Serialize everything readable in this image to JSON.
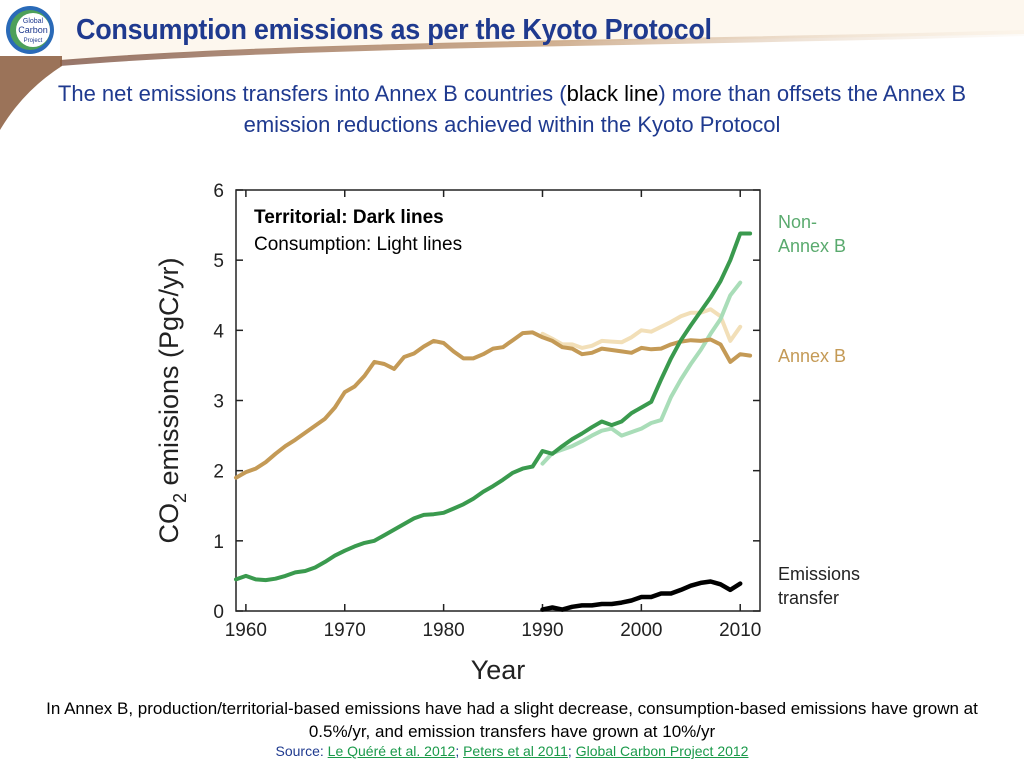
{
  "slide": {
    "title": "Consumption emissions as per the Kyoto Protocol",
    "subtitle_part1": "The net emissions transfers into Annex B countries (",
    "subtitle_black": "black line",
    "subtitle_part2": ") more than offsets the Annex B emission reductions achieved within the Kyoto Protocol",
    "logo_text": [
      "Global",
      "Carbon",
      "Project"
    ],
    "bottom_text": "In Annex B, production/territorial-based emissions have had a slight decrease, consumption-based emissions have grown at 0.5%/yr, and emission transfers have grown at 10%/yr",
    "source_label": "Source: ",
    "sources": [
      "Le Quéré et al. 2012",
      "Peters et al 2011",
      "Global Carbon Project 2012"
    ],
    "source_sep": "; ",
    "colors": {
      "title": "#1f3a8f",
      "link": "#1a9a4a"
    }
  },
  "chart_data": {
    "type": "line",
    "title": "",
    "xlabel": "Year",
    "ylabel_prefix": "CO",
    "ylabel_sub": "2",
    "ylabel_suffix": " emissions (PgC/yr)",
    "xlim": [
      1959,
      2012
    ],
    "ylim": [
      0,
      6
    ],
    "xticks": [
      1960,
      1970,
      1980,
      1990,
      2000,
      2010
    ],
    "yticks": [
      0,
      1,
      2,
      3,
      4,
      5,
      6
    ],
    "legend_note_bold": "Territorial: Dark lines",
    "legend_note": "Consumption: Light lines",
    "series": [
      {
        "name": "Annex B",
        "label_lines": [
          "Annex B"
        ],
        "label_color": "#c49a56",
        "kind": "territorial",
        "color": "#c49a56",
        "x": [
          1959,
          1960,
          1961,
          1962,
          1963,
          1964,
          1965,
          1966,
          1967,
          1968,
          1969,
          1970,
          1971,
          1972,
          1973,
          1974,
          1975,
          1976,
          1977,
          1978,
          1979,
          1980,
          1981,
          1982,
          1983,
          1984,
          1985,
          1986,
          1987,
          1988,
          1989,
          1990,
          1991,
          1992,
          1993,
          1994,
          1995,
          1996,
          1997,
          1998,
          1999,
          2000,
          2001,
          2002,
          2003,
          2004,
          2005,
          2006,
          2007,
          2008,
          2009,
          2010,
          2011
        ],
        "values": [
          1.9,
          1.98,
          2.03,
          2.12,
          2.24,
          2.35,
          2.44,
          2.54,
          2.64,
          2.74,
          2.9,
          3.12,
          3.2,
          3.35,
          3.55,
          3.52,
          3.45,
          3.62,
          3.67,
          3.77,
          3.85,
          3.82,
          3.7,
          3.6,
          3.6,
          3.66,
          3.74,
          3.76,
          3.86,
          3.96,
          3.97,
          3.9,
          3.85,
          3.76,
          3.74,
          3.66,
          3.68,
          3.74,
          3.72,
          3.7,
          3.68,
          3.75,
          3.73,
          3.74,
          3.8,
          3.84,
          3.86,
          3.85,
          3.87,
          3.8,
          3.55,
          3.66,
          3.64
        ]
      },
      {
        "name": "Annex B consumption",
        "kind": "consumption",
        "color": "#f2dfb8",
        "x": [
          1990,
          1991,
          1992,
          1993,
          1994,
          1995,
          1996,
          1997,
          1998,
          1999,
          2000,
          2001,
          2002,
          2003,
          2004,
          2005,
          2006,
          2007,
          2008,
          2009,
          2010
        ],
        "values": [
          3.95,
          3.88,
          3.8,
          3.8,
          3.75,
          3.78,
          3.85,
          3.84,
          3.83,
          3.9,
          4.0,
          3.98,
          4.05,
          4.12,
          4.2,
          4.25,
          4.25,
          4.3,
          4.2,
          3.85,
          4.05
        ]
      },
      {
        "name": "Non-Annex B",
        "label_lines": [
          "Non-",
          "Annex B"
        ],
        "label_color": "#5aaa6e",
        "kind": "territorial",
        "color": "#3a9a4e",
        "x": [
          1959,
          1960,
          1961,
          1962,
          1963,
          1964,
          1965,
          1966,
          1967,
          1968,
          1969,
          1970,
          1971,
          1972,
          1973,
          1974,
          1975,
          1976,
          1977,
          1978,
          1979,
          1980,
          1981,
          1982,
          1983,
          1984,
          1985,
          1986,
          1987,
          1988,
          1989,
          1990,
          1991,
          1992,
          1993,
          1994,
          1995,
          1996,
          1997,
          1998,
          1999,
          2000,
          2001,
          2002,
          2003,
          2004,
          2005,
          2006,
          2007,
          2008,
          2009,
          2010,
          2011
        ],
        "values": [
          0.45,
          0.5,
          0.45,
          0.44,
          0.46,
          0.5,
          0.55,
          0.57,
          0.62,
          0.7,
          0.79,
          0.86,
          0.92,
          0.97,
          1.0,
          1.08,
          1.16,
          1.24,
          1.32,
          1.37,
          1.38,
          1.4,
          1.46,
          1.52,
          1.6,
          1.7,
          1.78,
          1.87,
          1.97,
          2.03,
          2.06,
          2.28,
          2.24,
          2.35,
          2.45,
          2.53,
          2.62,
          2.7,
          2.65,
          2.7,
          2.82,
          2.9,
          2.98,
          3.3,
          3.6,
          3.86,
          4.07,
          4.27,
          4.47,
          4.7,
          5.0,
          5.38,
          5.38
        ]
      },
      {
        "name": "Non-Annex B consumption",
        "kind": "consumption",
        "color": "#a9ddb8",
        "x": [
          1990,
          1991,
          1992,
          1993,
          1994,
          1995,
          1996,
          1997,
          1998,
          1999,
          2000,
          2001,
          2002,
          2003,
          2004,
          2005,
          2006,
          2007,
          2008,
          2009,
          2010
        ],
        "values": [
          2.1,
          2.25,
          2.3,
          2.35,
          2.42,
          2.5,
          2.57,
          2.6,
          2.5,
          2.55,
          2.6,
          2.68,
          2.72,
          3.05,
          3.3,
          3.52,
          3.72,
          3.95,
          4.16,
          4.5,
          4.68
        ]
      },
      {
        "name": "Emissions transfer",
        "label_lines": [
          "Emissions",
          "transfer"
        ],
        "label_color": "#222222",
        "kind": "transfer",
        "color": "#000000",
        "x": [
          1990,
          1991,
          1992,
          1993,
          1994,
          1995,
          1996,
          1997,
          1998,
          1999,
          2000,
          2001,
          2002,
          2003,
          2004,
          2005,
          2006,
          2007,
          2008,
          2009,
          2010
        ],
        "values": [
          0.02,
          0.05,
          0.02,
          0.06,
          0.08,
          0.08,
          0.1,
          0.1,
          0.12,
          0.15,
          0.2,
          0.2,
          0.25,
          0.25,
          0.3,
          0.36,
          0.4,
          0.42,
          0.38,
          0.3,
          0.39
        ]
      }
    ]
  }
}
